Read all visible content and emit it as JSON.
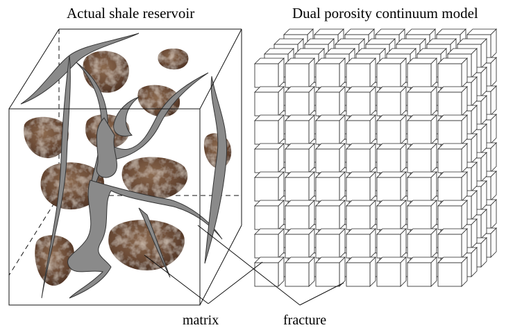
{
  "titles": {
    "left": "Actual shale reservoir",
    "right": "Dual porosity continuum model"
  },
  "labels": {
    "matrix": "matrix",
    "fracture": "fracture"
  }
}
